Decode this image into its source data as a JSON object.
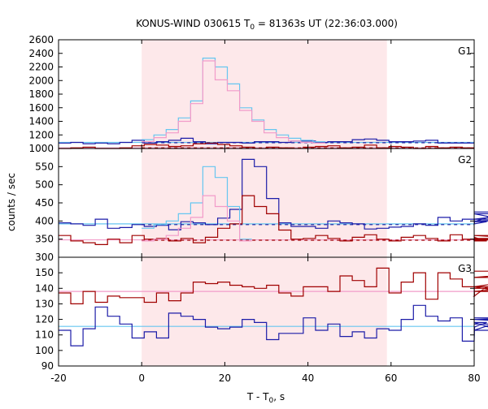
{
  "chart_data": {
    "type": "line",
    "title_prefix": "KONUS-WIND 030615 T",
    "title_sub": "0",
    "title_suffix": " = 81363s UT (22:36:03.000)",
    "xlabel_prefix": "T - T",
    "xlabel_sub": "0",
    "xlabel_suffix": ", s",
    "ylabel": "counts / sec",
    "xlim": [
      -20,
      80
    ],
    "xticks": [
      "-20",
      "0",
      "20",
      "40",
      "60",
      "80"
    ],
    "shaded_interval": [
      0,
      59
    ],
    "colors": {
      "shade": "#fde8ea",
      "blue": "#1c1ca8",
      "red": "#a00000",
      "light_blue": "#66c6f0",
      "pink": "#f29bc9",
      "blue_dash": "#2020a0",
      "red_dash": "#a00000"
    },
    "panels": [
      {
        "label": "G1",
        "ylim": [
          1000,
          2600
        ],
        "yticks": [
          "1000",
          "1200",
          "1400",
          "1600",
          "1800",
          "2000",
          "2200",
          "2400",
          "2600"
        ],
        "series": [
          {
            "color": "blue",
            "x0": -20,
            "dx": 2.944,
            "values": [
              1080,
              1090,
              1070,
              1080,
              1070,
              1090,
              1120,
              1080,
              1100,
              1120,
              1150,
              1100,
              1070,
              1090,
              1090,
              1080,
              1100,
              1100,
              1090,
              1110,
              1110,
              1090,
              1100,
              1100,
              1130,
              1140,
              1120,
              1100,
              1100,
              1110,
              1120,
              1080,
              1080,
              1080
            ]
          },
          {
            "color": "red",
            "x0": -20,
            "dx": 2.944,
            "values": [
              1000,
              1010,
              1020,
              1000,
              1000,
              1010,
              1040,
              1060,
              1050,
              1030,
              1040,
              1070,
              1080,
              1060,
              1040,
              1020,
              1000,
              1020,
              1010,
              1000,
              1020,
              1030,
              1040,
              1010,
              1020,
              1050,
              1010,
              1030,
              1020,
              1000,
              1030,
              1010,
              1020,
              1010
            ]
          },
          {
            "color": "light_blue",
            "x0": 0,
            "dx": 2.944,
            "values": [
              1130,
              1200,
              1280,
              1450,
              1700,
              2330,
              2200,
              1950,
              1600,
              1420,
              1280,
              1200,
              1150,
              1120,
              1100
            ]
          },
          {
            "color": "pink",
            "x0": 0,
            "dx": 2.944,
            "values": [
              1100,
              1160,
              1230,
              1400,
              1660,
              2290,
              2010,
              1850,
              1560,
              1400,
              1230,
              1160,
              1110,
              1090,
              1080
            ]
          }
        ],
        "baselines": [
          {
            "color": "light_blue",
            "y": 1090,
            "from": -20,
            "to": 80,
            "style": "solid"
          },
          {
            "color": "pink",
            "y": 1010,
            "from": -20,
            "to": 80,
            "style": "solid"
          },
          {
            "color": "blue_dash",
            "y": 1085,
            "from": 0,
            "to": 80,
            "style": "dashed"
          },
          {
            "color": "red_dash",
            "y": 1010,
            "from": 0,
            "to": 80,
            "style": "dashed"
          }
        ]
      },
      {
        "label": "G2",
        "ylim": [
          300,
          600
        ],
        "yticks": [
          "300",
          "350",
          "400",
          "450",
          "500",
          "550"
        ],
        "series": [
          {
            "color": "blue",
            "x0": -20,
            "dx": 2.944,
            "values": [
              395,
              392,
              388,
              405,
              380,
              382,
              390,
              385,
              388,
              376,
              398,
              395,
              390,
              408,
              432,
              570,
              550,
              462,
              395,
              385,
              385,
              380,
              400,
              395,
              392,
              378,
              380,
              383,
              385,
              392,
              388,
              410,
              400,
              405,
              392,
              398,
              420,
              400,
              405,
              425
            ]
          },
          {
            "color": "red",
            "x0": -20,
            "dx": 2.944,
            "values": [
              360,
              345,
              340,
              335,
              350,
              340,
              360,
              350,
              352,
              345,
              352,
              340,
              355,
              380,
              392,
              470,
              440,
              420,
              375,
              350,
              352,
              360,
              352,
              345,
              355,
              362,
              350,
              345,
              355,
              360,
              352,
              345,
              362,
              350,
              355,
              345,
              352,
              348,
              360,
              350
            ]
          },
          {
            "color": "light_blue",
            "x0": 0,
            "dx": 2.944,
            "values": [
              380,
              390,
              400,
              420,
              450,
              550,
              520,
              440,
              350
            ]
          },
          {
            "color": "pink",
            "x0": 0,
            "dx": 2.944,
            "values": [
              345,
              350,
              360,
              380,
              410,
              470,
              440,
              400,
              345
            ]
          }
        ],
        "baselines": [
          {
            "color": "light_blue",
            "y": 392,
            "from": -20,
            "to": 80,
            "style": "solid"
          },
          {
            "color": "pink",
            "y": 348,
            "from": -20,
            "to": 80,
            "style": "solid"
          },
          {
            "color": "blue_dash",
            "y": 390,
            "from": 0,
            "to": 80,
            "style": "dashed"
          },
          {
            "color": "red_dash",
            "y": 347,
            "from": 0,
            "to": 80,
            "style": "dashed"
          }
        ]
      },
      {
        "label": "G3",
        "ylim": [
          90,
          160
        ],
        "yticks": [
          "90",
          "100",
          "110",
          "120",
          "130",
          "140",
          "150"
        ],
        "series": [
          {
            "color": "red",
            "x0": -20,
            "dx": 2.944,
            "values": [
              137,
              130,
              138,
              131,
              135,
              134,
              134,
              131,
              137,
              132,
              137,
              144,
              143,
              144,
              142,
              141,
              140,
              142,
              137,
              135,
              141,
              141,
              138,
              148,
              145,
              141,
              153,
              137,
              144,
              150,
              133,
              150,
              146,
              141,
              135,
              141,
              138,
              140,
              141,
              147,
              151
            ]
          },
          {
            "color": "blue",
            "x0": -20,
            "dx": 2.944,
            "values": [
              113,
              103,
              114,
              128,
              122,
              117,
              108,
              112,
              108,
              124,
              122,
              120,
              115,
              114,
              115,
              120,
              118,
              107,
              111,
              111,
              121,
              113,
              117,
              109,
              112,
              108,
              114,
              113,
              120,
              129,
              122,
              119,
              121,
              106,
              115,
              118,
              113,
              121,
              120,
              120,
              117
            ]
          }
        ],
        "baselines": [
          {
            "color": "pink",
            "y": 138,
            "from": -20,
            "to": 80,
            "style": "solid"
          },
          {
            "color": "light_blue",
            "y": 115.5,
            "from": -20,
            "to": 80,
            "style": "solid"
          }
        ]
      }
    ]
  }
}
